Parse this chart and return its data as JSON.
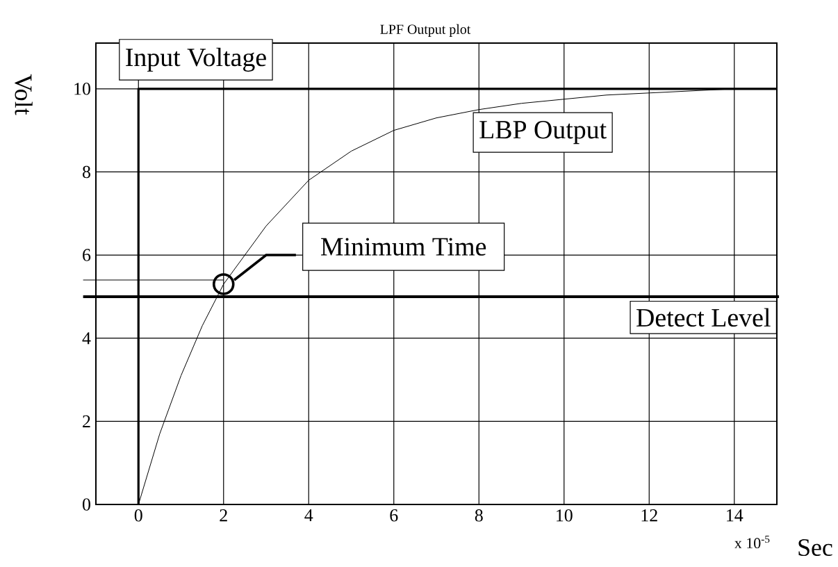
{
  "chart_data": {
    "type": "line",
    "title": "LPF Output plot",
    "ylabel": "Volt",
    "xlabel": "Sec",
    "xlim": [
      -1,
      15
    ],
    "ylim": [
      0,
      11.1
    ],
    "xticks": [
      0,
      2,
      4,
      6,
      8,
      10,
      12,
      14
    ],
    "yticks": [
      0,
      2,
      4,
      6,
      8,
      10
    ],
    "grid": true,
    "marker": "none",
    "line_style": "solid",
    "series": [
      {
        "name": "Input Voltage",
        "color": "#000000",
        "x": [
          0,
          0,
          15
        ],
        "values": [
          0,
          10,
          10
        ]
      },
      {
        "name": "LBP Output",
        "color": "#000000",
        "x": [
          0,
          0.5,
          1,
          1.5,
          2,
          3,
          4,
          5,
          6,
          7,
          8,
          9,
          10,
          11,
          12,
          13,
          14
        ],
        "values": [
          0,
          1.7,
          3.1,
          4.3,
          5.3,
          6.7,
          7.8,
          8.5,
          9.0,
          9.3,
          9.5,
          9.65,
          9.75,
          9.85,
          9.9,
          9.95,
          10
        ]
      }
    ],
    "ref_lines": [
      {
        "axis": "y",
        "value": 5,
        "label": "Detect Level",
        "color": "#000000"
      },
      {
        "axis": "y",
        "value": 5.4,
        "color": "#000000"
      }
    ],
    "annotations": [
      {
        "text": "Minimum Time",
        "x": 2,
        "y": 5.3
      },
      "x 10$^{-5}$"
    ]
  }
}
